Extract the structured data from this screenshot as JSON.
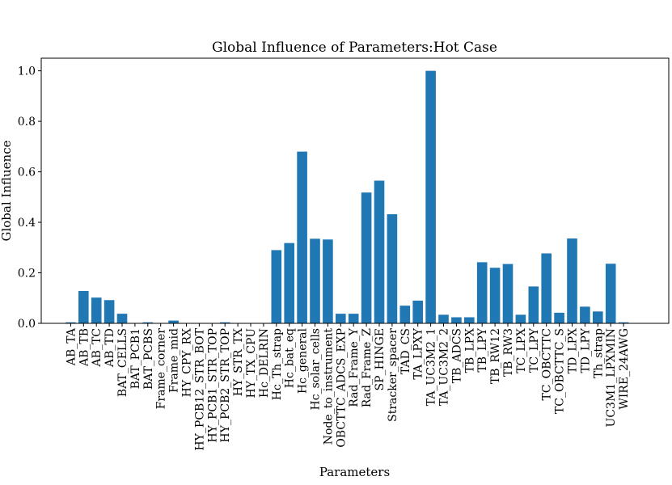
{
  "chart_data": {
    "type": "bar",
    "title": "Global Influence of Parameters:Hot Case",
    "xlabel": "Parameters",
    "ylabel": "Global Influence",
    "ylim": [
      0,
      1.05
    ],
    "yticks": [
      "0.0",
      "0.2",
      "0.4",
      "0.6",
      "0.8",
      "1.0"
    ],
    "bar_color": "#1f77b4",
    "grid": false,
    "categories": [
      "AB_TA",
      "AB_TB",
      "AB_TC",
      "AB_TD",
      "BAT_CELLS",
      "BAT_PCB1",
      "BAT_PCBS",
      "Frame_corner",
      "Frame_mid",
      "HY_CPY_RX",
      "HY_PCB12_STR_BOT",
      "HY_PCB1_STR_TOP",
      "HY_PCB2_STR_TOP",
      "HY_STR_TX",
      "HY_TX_CPU",
      "Hc_DELRIN",
      "Hc_Th_strap",
      "Hc_bat_eq",
      "Hc_general",
      "Hc_solar_cells",
      "Node_to_instrument",
      "OBCTTC_ADCS_EXP",
      "Rad_Frame_Y",
      "Rad_Frame_Z",
      "SP_HINGE",
      "Stracker_spacer",
      "TAD_CS",
      "TA_LPXY",
      "TA_UC3M2_1",
      "TA_UC3M2_2",
      "TB_ADCS",
      "TB_LPX",
      "TB_LPY",
      "TB_RW12",
      "TB_RW3",
      "TC_LPX",
      "TC_LPY",
      "TC_OBCTTC",
      "TC_OBCTTC_S",
      "TD_LPX",
      "TD_LPY",
      "Th_strap",
      "UC3M1_LPXMIN",
      "WIRE_24AWG"
    ],
    "values": [
      0.004,
      0.128,
      0.102,
      0.092,
      0.038,
      0.001,
      0.004,
      0.001,
      0.011,
      0.001,
      0.001,
      0.001,
      0.004,
      0.001,
      0.001,
      0.001,
      0.29,
      0.318,
      0.68,
      0.335,
      0.332,
      0.038,
      0.038,
      0.518,
      0.565,
      0.432,
      0.07,
      0.09,
      1.0,
      0.034,
      0.024,
      0.024,
      0.242,
      0.22,
      0.235,
      0.034,
      0.146,
      0.277,
      0.042,
      0.336,
      0.066,
      0.047,
      0.236,
      0.004
    ]
  }
}
